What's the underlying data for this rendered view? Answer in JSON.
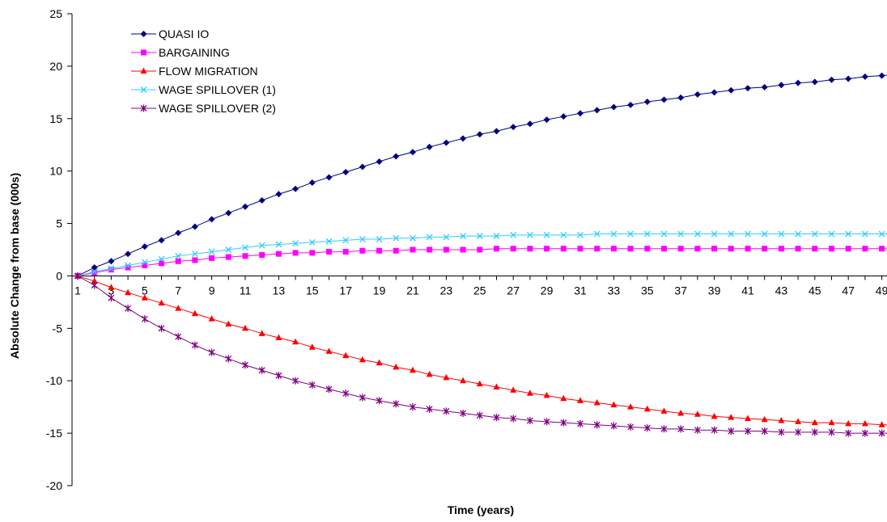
{
  "chart_data": {
    "type": "line",
    "title": "",
    "xlabel": "Time (years)",
    "ylabel": "Absolute Change from base (000s)",
    "ylim": [
      -20,
      25
    ],
    "yticks": [
      25,
      20,
      15,
      10,
      5,
      0,
      -5,
      -10,
      -15,
      -20
    ],
    "x": [
      1,
      2,
      3,
      4,
      5,
      6,
      7,
      8,
      9,
      10,
      11,
      12,
      13,
      14,
      15,
      16,
      17,
      18,
      19,
      20,
      21,
      22,
      23,
      24,
      25,
      26,
      27,
      28,
      29,
      30,
      31,
      32,
      33,
      34,
      35,
      36,
      37,
      38,
      39,
      40,
      41,
      42,
      43,
      44,
      45,
      46,
      47,
      48,
      49,
      50
    ],
    "xticklabels": [
      "1",
      "3",
      "5",
      "7",
      "9",
      "11",
      "13",
      "15",
      "17",
      "19",
      "21",
      "23",
      "25",
      "27",
      "29",
      "31",
      "33",
      "35",
      "37",
      "39",
      "41",
      "43",
      "45",
      "47",
      "49"
    ],
    "legend_position": "top-left",
    "grid": false,
    "series": [
      {
        "name": "QUASI IO",
        "color": "#000080",
        "marker": "diamond",
        "values": [
          0.0,
          0.8,
          1.4,
          2.1,
          2.8,
          3.4,
          4.1,
          4.7,
          5.4,
          6.0,
          6.6,
          7.2,
          7.8,
          8.3,
          8.9,
          9.4,
          9.9,
          10.4,
          10.9,
          11.4,
          11.8,
          12.3,
          12.7,
          13.1,
          13.5,
          13.8,
          14.2,
          14.5,
          14.9,
          15.2,
          15.5,
          15.8,
          16.1,
          16.3,
          16.6,
          16.8,
          17.0,
          17.3,
          17.5,
          17.7,
          17.9,
          18.0,
          18.2,
          18.4,
          18.5,
          18.7,
          18.8,
          19.0,
          19.1,
          19.2
        ]
      },
      {
        "name": "BARGAINING",
        "color": "#FF00FF",
        "marker": "square",
        "values": [
          0.0,
          0.3,
          0.6,
          0.8,
          1.0,
          1.2,
          1.4,
          1.5,
          1.7,
          1.8,
          1.9,
          2.0,
          2.1,
          2.2,
          2.2,
          2.3,
          2.3,
          2.4,
          2.4,
          2.4,
          2.5,
          2.5,
          2.5,
          2.5,
          2.5,
          2.6,
          2.6,
          2.6,
          2.6,
          2.6,
          2.6,
          2.6,
          2.6,
          2.6,
          2.6,
          2.6,
          2.6,
          2.6,
          2.6,
          2.6,
          2.6,
          2.6,
          2.6,
          2.6,
          2.6,
          2.6,
          2.6,
          2.6,
          2.6,
          2.6
        ]
      },
      {
        "name": "FLOW MIGRATION",
        "color": "#FF0000",
        "marker": "triangle",
        "values": [
          0.0,
          -0.5,
          -1.1,
          -1.6,
          -2.1,
          -2.6,
          -3.1,
          -3.6,
          -4.1,
          -4.6,
          -5.0,
          -5.5,
          -5.9,
          -6.3,
          -6.8,
          -7.2,
          -7.6,
          -8.0,
          -8.3,
          -8.7,
          -9.0,
          -9.4,
          -9.7,
          -10.0,
          -10.3,
          -10.6,
          -10.9,
          -11.2,
          -11.4,
          -11.7,
          -11.9,
          -12.1,
          -12.3,
          -12.5,
          -12.7,
          -12.9,
          -13.1,
          -13.2,
          -13.4,
          -13.5,
          -13.6,
          -13.7,
          -13.8,
          -13.9,
          -14.0,
          -14.0,
          -14.1,
          -14.1,
          -14.2,
          -14.2
        ]
      },
      {
        "name": "WAGE SPILLOVER (1)",
        "color": "#33CCFF",
        "marker": "x",
        "values": [
          0.0,
          0.4,
          0.7,
          1.0,
          1.3,
          1.6,
          1.9,
          2.1,
          2.3,
          2.5,
          2.7,
          2.9,
          3.0,
          3.1,
          3.2,
          3.3,
          3.4,
          3.5,
          3.5,
          3.6,
          3.6,
          3.7,
          3.7,
          3.8,
          3.8,
          3.8,
          3.9,
          3.9,
          3.9,
          3.9,
          3.9,
          4.0,
          4.0,
          4.0,
          4.0,
          4.0,
          4.0,
          4.0,
          4.0,
          4.0,
          4.0,
          4.0,
          4.0,
          4.0,
          4.0,
          4.0,
          4.0,
          4.0,
          4.0,
          4.0
        ]
      },
      {
        "name": "WAGE SPILLOVER (2)",
        "color": "#800080",
        "marker": "star",
        "values": [
          0.0,
          -0.9,
          -2.1,
          -3.1,
          -4.1,
          -5.0,
          -5.8,
          -6.6,
          -7.3,
          -7.9,
          -8.5,
          -9.0,
          -9.5,
          -10.0,
          -10.4,
          -10.8,
          -11.2,
          -11.6,
          -11.9,
          -12.2,
          -12.5,
          -12.7,
          -12.9,
          -13.1,
          -13.3,
          -13.5,
          -13.6,
          -13.8,
          -13.9,
          -14.0,
          -14.1,
          -14.2,
          -14.3,
          -14.4,
          -14.5,
          -14.6,
          -14.6,
          -14.7,
          -14.7,
          -14.8,
          -14.8,
          -14.8,
          -14.9,
          -14.9,
          -14.9,
          -14.9,
          -15.0,
          -15.0,
          -15.0,
          -15.0
        ]
      }
    ]
  }
}
